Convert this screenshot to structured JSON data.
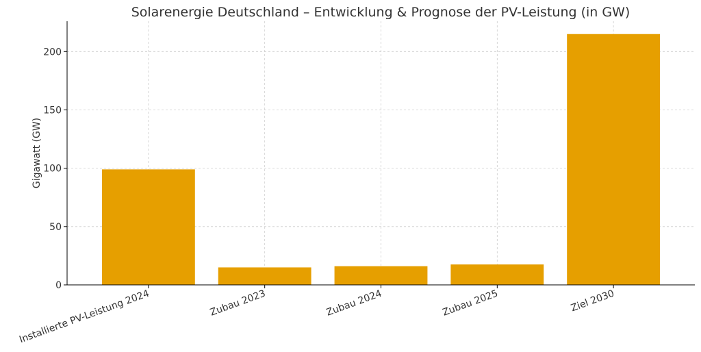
{
  "chart_data": {
    "type": "bar",
    "title": "Solarenergie Deutschland – Entwicklung & Prognose der PV-Leistung (in GW)",
    "xlabel": "",
    "ylabel": "Gigawatt (GW)",
    "categories": [
      "Installierte PV-Leistung 2024",
      "Zubau 2023",
      "Zubau 2024",
      "Zubau 2025",
      "Ziel 2030"
    ],
    "values": [
      99,
      15,
      16,
      17.5,
      215
    ],
    "ylim": [
      0,
      226
    ],
    "yticks": [
      0,
      50,
      100,
      150,
      200
    ],
    "grid": true,
    "bar_color": "#E69F00"
  }
}
